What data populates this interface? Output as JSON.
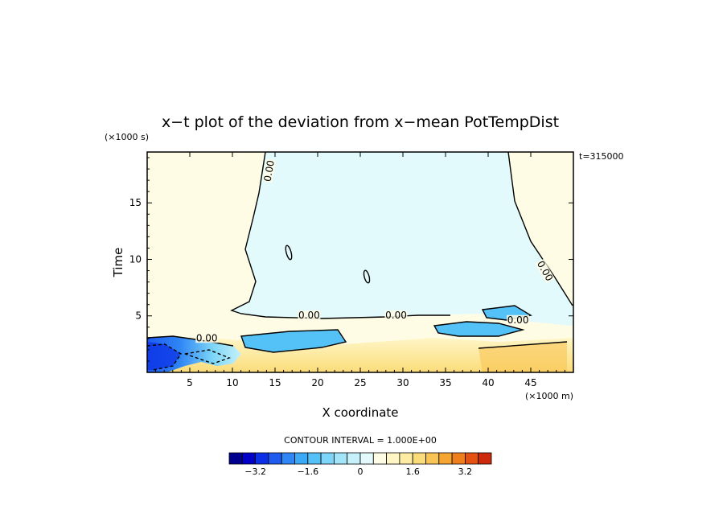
{
  "chart_data": {
    "type": "heatmap",
    "title": "x−t plot of the deviation from x−mean PotTempDist",
    "y_unit": "(×1000 s)",
    "x_unit": "(×1000 m)",
    "xlabel": "X coordinate",
    "ylabel": "Time",
    "time_stamp": "t=315000",
    "xlim": [
      0,
      50
    ],
    "ylim": [
      0,
      19.5
    ],
    "x_ticks": [
      5,
      10,
      15,
      20,
      25,
      30,
      35,
      40,
      45
    ],
    "x_tick_labels": [
      "5",
      "10",
      "15",
      "20",
      "25",
      "30",
      "35",
      "40",
      "45"
    ],
    "y_ticks": [
      5,
      10,
      15
    ],
    "y_tick_labels": [
      "5",
      "10",
      "15"
    ],
    "contour_interval_text": "CONTOUR INTERVAL = 1.000E+00",
    "contour_labels": [
      {
        "text": "0.00",
        "x": 14.5,
        "y": 17.8,
        "angle": -80
      },
      {
        "text": "0.00",
        "x": 19.0,
        "y": 4.9,
        "angle": 0
      },
      {
        "text": "0.00",
        "x": 29.2,
        "y": 4.9,
        "angle": 0
      },
      {
        "text": "0.00",
        "x": 46.5,
        "y": 8.9,
        "angle": 60
      },
      {
        "text": "0.00",
        "x": 43.5,
        "y": 4.5,
        "angle": 0
      },
      {
        "text": "0.00",
        "x": 7.0,
        "y": 2.9,
        "angle": 0
      }
    ],
    "colorbar": {
      "min": -4.0,
      "max": 4.0,
      "step": 0.4,
      "tick_values": [
        -3.2,
        -1.6,
        0,
        1.6,
        3.2
      ],
      "tick_labels": [
        "−3.2",
        "−1.6",
        "0",
        "1.6",
        "3.2"
      ],
      "colors": [
        "#00008f",
        "#0000c8",
        "#0a2fe6",
        "#1e5cf0",
        "#2f86f5",
        "#3ca9f7",
        "#55c2f7",
        "#7dd6f7",
        "#a3e5f8",
        "#c6f1fa",
        "#e2fafc",
        "#fffce6",
        "#fff6c6",
        "#fdeca2",
        "#fbdc7a",
        "#f8c453",
        "#f4a532",
        "#ef7e1c",
        "#e35211",
        "#cc2a0a"
      ]
    },
    "regions": [
      {
        "desc": "upper background",
        "value": 0.1
      },
      {
        "desc": "central upper lobe",
        "value": -0.1
      },
      {
        "desc": "lower-left cold pool",
        "value": -3.0
      },
      {
        "desc": "lower warm band",
        "value": 1.0
      }
    ]
  }
}
